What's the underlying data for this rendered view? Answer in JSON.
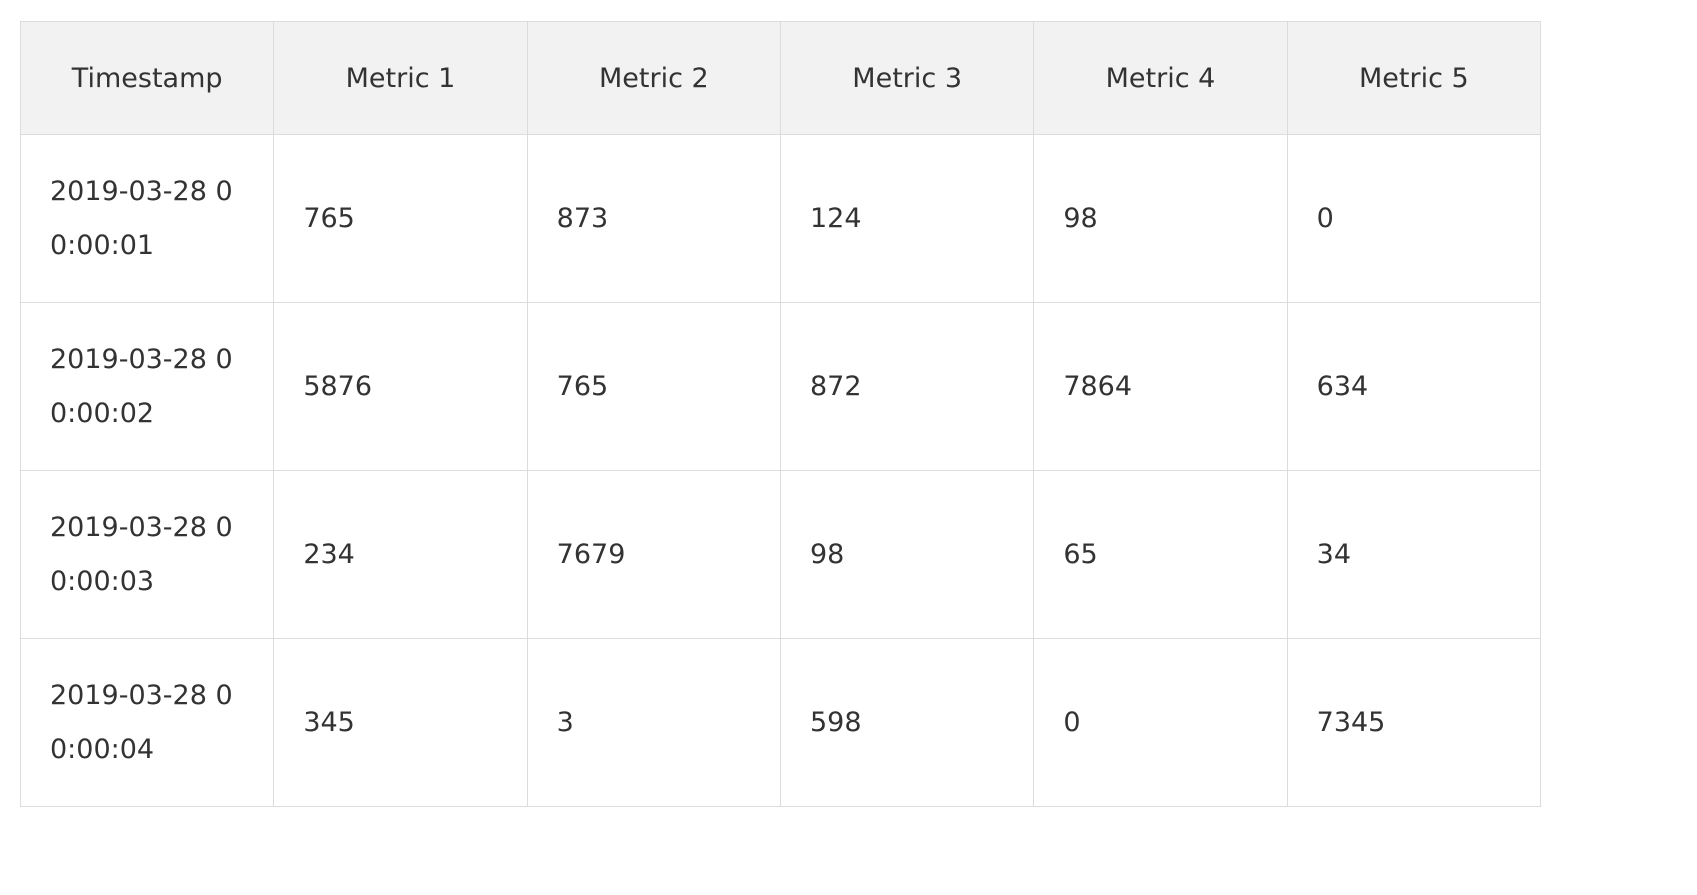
{
  "table": {
    "headers": [
      "Timestamp",
      "Metric 1",
      "Metric 2",
      "Metric 3",
      "Metric 4",
      "Metric 5"
    ],
    "rows": [
      {
        "timestamp": [
          "2019-03-28 0",
          "0:00:01"
        ],
        "values": [
          "765",
          "873",
          "124",
          "98",
          "0"
        ]
      },
      {
        "timestamp": [
          "2019-03-28 0",
          "0:00:02"
        ],
        "values": [
          "5876",
          "765",
          "872",
          "7864",
          "634"
        ]
      },
      {
        "timestamp": [
          "2019-03-28 0",
          "0:00:03"
        ],
        "values": [
          "234",
          "7679",
          "98",
          "65",
          "34"
        ]
      },
      {
        "timestamp": [
          "2019-03-28 0",
          "0:00:04"
        ],
        "values": [
          "345",
          "3",
          "598",
          "0",
          "7345"
        ]
      }
    ]
  }
}
